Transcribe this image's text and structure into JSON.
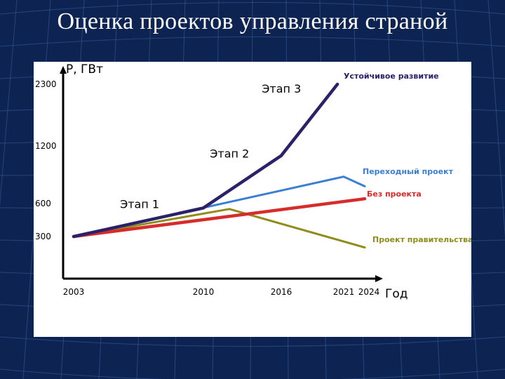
{
  "slide": {
    "title": "Оценка проектов управления страной",
    "background_color": "#0d2452",
    "panel_color": "#ffffff"
  },
  "chart_data": {
    "type": "line",
    "title": "",
    "xlabel": "Год",
    "ylabel": "P, ГВт",
    "x_ticks": [
      "2003",
      "2010",
      "2016",
      "2021",
      "2024"
    ],
    "y_ticks": [
      300,
      600,
      1200,
      2300
    ],
    "xlim": [
      2003,
      2024
    ],
    "grid": false,
    "series": [
      {
        "name": "Устойчивое развитие",
        "color": "#2b2169",
        "x": [
          2003,
          2010,
          2016,
          2020.5
        ],
        "y": [
          300,
          560,
          1100,
          2300
        ]
      },
      {
        "name": "Переходный проект",
        "color": "#3a7fd5",
        "x": [
          2003,
          2021,
          2023.5
        ],
        "y": [
          300,
          880,
          780
        ]
      },
      {
        "name": "Без проекта",
        "color": "#d62c2a",
        "x": [
          2003,
          2023.5
        ],
        "y": [
          300,
          650
        ]
      },
      {
        "name": "Проект правительства",
        "color": "#8f8c1c",
        "x": [
          2003,
          2012,
          2023.5
        ],
        "y": [
          300,
          550,
          215
        ]
      }
    ],
    "annotations": [
      {
        "text": "Этап 1",
        "x": 2005.5,
        "y": 560
      },
      {
        "text": "Этап 2",
        "x": 2010.5,
        "y": 1080
      },
      {
        "text": "Этап 3",
        "x": 2014.5,
        "y": 2150
      }
    ]
  }
}
